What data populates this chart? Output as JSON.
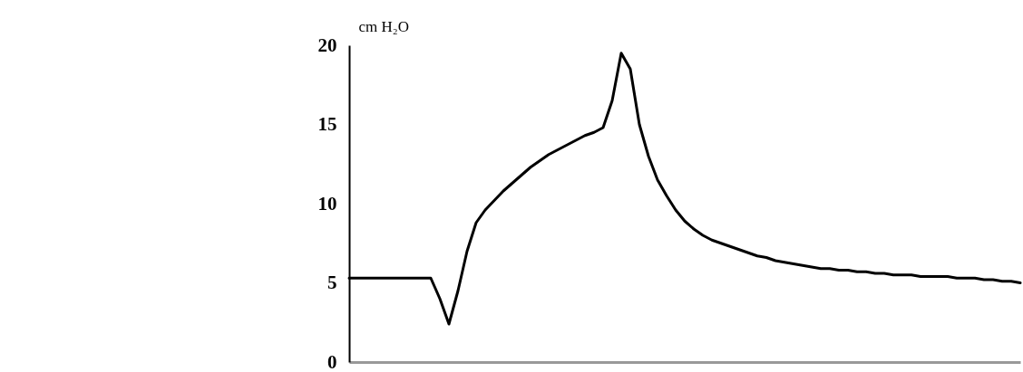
{
  "chart_data": {
    "type": "line",
    "ylabel": "cm H₂O",
    "categories": [
      null,
      null,
      null,
      null,
      null,
      null,
      null,
      null,
      null,
      null,
      null,
      null,
      null,
      null,
      null,
      null,
      null,
      null,
      null,
      null,
      null,
      null,
      null,
      null,
      null,
      null,
      null,
      null,
      null,
      null,
      null,
      null,
      null,
      null,
      null,
      null,
      null,
      null,
      null,
      null,
      null,
      null,
      null,
      null,
      null,
      null,
      null,
      null,
      null,
      null,
      null,
      null,
      null,
      null,
      null,
      null,
      null,
      null,
      null,
      null,
      null,
      null,
      null,
      null,
      null,
      null,
      null,
      null,
      null,
      null,
      null,
      null,
      null,
      null,
      null
    ],
    "series": [
      {
        "color": "#000000",
        "values": [
          5.3,
          5.3,
          5.3,
          5.3,
          5.3,
          5.3,
          5.3,
          5.3,
          5.3,
          5.3,
          4.0,
          2.4,
          4.5,
          7.0,
          8.8,
          9.6,
          10.2,
          10.8,
          11.3,
          11.8,
          12.3,
          12.7,
          13.1,
          13.4,
          13.7,
          14.0,
          14.3,
          14.5,
          14.8,
          16.5,
          19.5,
          18.5,
          15.0,
          13.0,
          11.5,
          10.5,
          9.6,
          8.9,
          8.4,
          8.0,
          7.7,
          7.5,
          7.3,
          7.1,
          6.9,
          6.7,
          6.6,
          6.4,
          6.3,
          6.2,
          6.1,
          6.0,
          5.9,
          5.9,
          5.8,
          5.8,
          5.7,
          5.7,
          5.6,
          5.6,
          5.5,
          5.5,
          5.5,
          5.4,
          5.4,
          5.4,
          5.4,
          5.3,
          5.3,
          5.3,
          5.2,
          5.2,
          5.1,
          5.1,
          5.0
        ]
      }
    ],
    "ylim": [
      0,
      20
    ],
    "yticks": [
      0,
      5,
      10,
      15,
      20
    ],
    "tick_labels": "y"
  }
}
